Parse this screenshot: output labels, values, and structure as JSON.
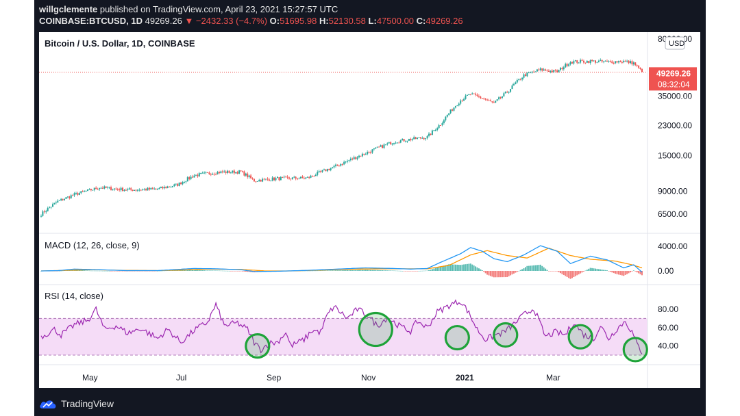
{
  "header": {
    "author": "willgclemente",
    "published_text": "published on TradingView.com, April 23, 2021 15:27:57 UTC",
    "symbol": "COINBASE:BTCUSD, 1D",
    "last": "49269.26",
    "change": "▼ −2432.33 (−4.7%)",
    "o_label": "O:",
    "o": "51695.98",
    "h_label": "H:",
    "h": "52130.58",
    "l_label": "L:",
    "l": "47500.00",
    "c_label": "C:",
    "c": "49269.26"
  },
  "footer": {
    "brand": "TradingView"
  },
  "colors": {
    "up": "#26a69a",
    "down": "#ef5350",
    "macd": "#2196f3",
    "signal": "#ff9800",
    "rsi": "#9c27b0",
    "rsi_band": "#f5dcf7",
    "circle": "#1ea339"
  },
  "chart_data": [
    {
      "type": "candlestick",
      "title": "Bitcoin / U.S. Dollar, 1D, COINBASE",
      "currency": "USD",
      "scale": "log",
      "y_ticks": [
        6500,
        9000,
        15000,
        23000,
        35000,
        80000
      ],
      "y_tick_labels": [
        "6500.00",
        "9000.00",
        "15000.00",
        "23000.00",
        "35000.00",
        "80000.00"
      ],
      "x_tick_labels": [
        "May",
        "Jul",
        "Sep",
        "Nov",
        "2021",
        "Mar"
      ],
      "last_price": "49269.26",
      "countdown": "08:32:04",
      "keypoints": [
        [
          0,
          6500
        ],
        [
          10,
          7800
        ],
        [
          20,
          8600
        ],
        [
          35,
          9500
        ],
        [
          52,
          9200
        ],
        [
          70,
          9300
        ],
        [
          82,
          9900
        ],
        [
          92,
          11300
        ],
        [
          105,
          11800
        ],
        [
          120,
          11900
        ],
        [
          128,
          10500
        ],
        [
          142,
          10800
        ],
        [
          160,
          10900
        ],
        [
          178,
          13000
        ],
        [
          195,
          15500
        ],
        [
          212,
          18300
        ],
        [
          222,
          18900
        ],
        [
          232,
          19500
        ],
        [
          240,
          23500
        ],
        [
          252,
          33000
        ],
        [
          258,
          36000
        ],
        [
          265,
          34000
        ],
        [
          272,
          31500
        ],
        [
          280,
          37000
        ],
        [
          290,
          47000
        ],
        [
          300,
          51000
        ],
        [
          310,
          49500
        ],
        [
          318,
          57000
        ],
        [
          330,
          57500
        ],
        [
          340,
          57000
        ],
        [
          350,
          57500
        ],
        [
          356,
          56000
        ],
        [
          361,
          49300
        ]
      ]
    },
    {
      "type": "line",
      "title": "MACD (12, 26, close, 9)",
      "y_ticks": [
        0,
        4000
      ],
      "y_tick_labels": [
        "0.00",
        "4000.00"
      ],
      "macd_keypoints": [
        [
          0,
          0
        ],
        [
          10,
          50
        ],
        [
          20,
          300
        ],
        [
          35,
          200
        ],
        [
          52,
          50
        ],
        [
          70,
          60
        ],
        [
          82,
          250
        ],
        [
          92,
          400
        ],
        [
          105,
          350
        ],
        [
          120,
          200
        ],
        [
          128,
          -100
        ],
        [
          142,
          -50
        ],
        [
          160,
          100
        ],
        [
          178,
          300
        ],
        [
          195,
          500
        ],
        [
          212,
          400
        ],
        [
          222,
          300
        ],
        [
          232,
          400
        ],
        [
          240,
          1400
        ],
        [
          252,
          2800
        ],
        [
          258,
          3800
        ],
        [
          265,
          3200
        ],
        [
          272,
          2000
        ],
        [
          280,
          1500
        ],
        [
          290,
          2600
        ],
        [
          300,
          4100
        ],
        [
          310,
          3200
        ],
        [
          318,
          1200
        ],
        [
          330,
          2400
        ],
        [
          340,
          1800
        ],
        [
          350,
          500
        ],
        [
          356,
          1000
        ],
        [
          361,
          -200
        ]
      ],
      "signal_keypoints": [
        [
          0,
          0
        ],
        [
          15,
          100
        ],
        [
          30,
          200
        ],
        [
          50,
          100
        ],
        [
          70,
          60
        ],
        [
          85,
          150
        ],
        [
          100,
          300
        ],
        [
          120,
          250
        ],
        [
          135,
          0
        ],
        [
          150,
          0
        ],
        [
          170,
          150
        ],
        [
          190,
          300
        ],
        [
          212,
          350
        ],
        [
          232,
          350
        ],
        [
          245,
          900
        ],
        [
          258,
          2600
        ],
        [
          268,
          3300
        ],
        [
          280,
          2500
        ],
        [
          292,
          2100
        ],
        [
          305,
          3700
        ],
        [
          318,
          2500
        ],
        [
          330,
          1900
        ],
        [
          345,
          1600
        ],
        [
          355,
          1000
        ],
        [
          361,
          500
        ]
      ]
    },
    {
      "type": "line",
      "title": "RSI (14, close)",
      "y_ticks": [
        40,
        60,
        80
      ],
      "y_tick_labels": [
        "40.00",
        "60.00",
        "80.00"
      ],
      "band": [
        30,
        70
      ],
      "keypoints": [
        [
          0,
          50
        ],
        [
          8,
          58
        ],
        [
          12,
          52
        ],
        [
          20,
          63
        ],
        [
          28,
          68
        ],
        [
          33,
          80
        ],
        [
          38,
          58
        ],
        [
          45,
          62
        ],
        [
          52,
          54
        ],
        [
          60,
          59
        ],
        [
          70,
          48
        ],
        [
          76,
          58
        ],
        [
          84,
          44
        ],
        [
          92,
          57
        ],
        [
          100,
          66
        ],
        [
          105,
          85
        ],
        [
          110,
          62
        ],
        [
          118,
          65
        ],
        [
          124,
          58
        ],
        [
          128,
          44
        ],
        [
          132,
          36
        ],
        [
          137,
          43
        ],
        [
          142,
          44
        ],
        [
          147,
          55
        ],
        [
          150,
          40
        ],
        [
          158,
          47
        ],
        [
          163,
          57
        ],
        [
          168,
          55
        ],
        [
          172,
          74
        ],
        [
          176,
          83
        ],
        [
          184,
          70
        ],
        [
          190,
          80
        ],
        [
          196,
          74
        ],
        [
          202,
          62
        ],
        [
          208,
          71
        ],
        [
          215,
          62
        ],
        [
          222,
          56
        ],
        [
          226,
          67
        ],
        [
          232,
          60
        ],
        [
          238,
          77
        ],
        [
          246,
          85
        ],
        [
          252,
          89
        ],
        [
          256,
          79
        ],
        [
          262,
          58
        ],
        [
          267,
          47
        ],
        [
          272,
          51
        ],
        [
          278,
          55
        ],
        [
          283,
          62
        ],
        [
          290,
          74
        ],
        [
          296,
          81
        ],
        [
          303,
          50
        ],
        [
          309,
          55
        ],
        [
          315,
          52
        ],
        [
          320,
          66
        ],
        [
          326,
          52
        ],
        [
          332,
          48
        ],
        [
          336,
          62
        ],
        [
          341,
          48
        ],
        [
          346,
          59
        ],
        [
          351,
          67
        ],
        [
          355,
          55
        ],
        [
          358,
          42
        ],
        [
          361,
          33
        ]
      ],
      "highlights": [
        [
          130,
          40
        ],
        [
          201,
          58
        ],
        [
          250,
          49
        ],
        [
          279,
          52
        ],
        [
          324,
          50
        ],
        [
          357,
          36
        ]
      ]
    }
  ]
}
